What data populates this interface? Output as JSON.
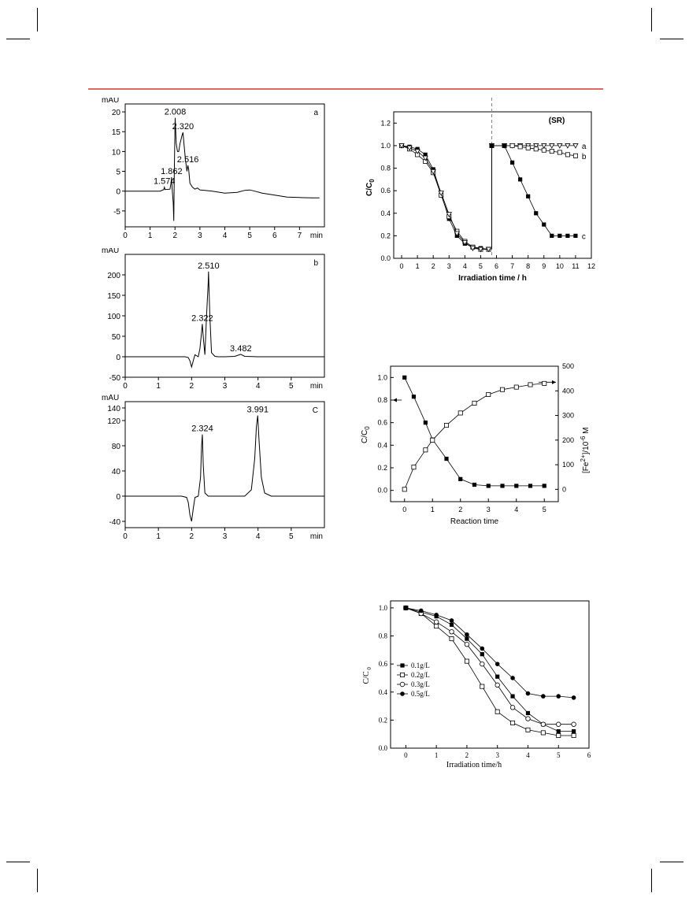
{
  "page": {
    "rule_color": "#e0666a"
  },
  "chart_data": [
    {
      "id": "hplc_a",
      "type": "line",
      "panel_label": "a",
      "ylabel": "mAU",
      "xlabel": "min",
      "xlim": [
        0,
        8
      ],
      "ylim": [
        -9,
        22
      ],
      "xticks": [
        0,
        1,
        2,
        3,
        4,
        5,
        6,
        7
      ],
      "yticks": [
        -5,
        0,
        5,
        10,
        15,
        20
      ],
      "series": [
        {
          "x": [
            0,
            1.0,
            1.4,
            1.55,
            1.574,
            1.6,
            1.8,
            1.85,
            1.862,
            1.88,
            1.93,
            1.95,
            1.97,
            2.0,
            2.008,
            2.05,
            2.1,
            2.15,
            2.2,
            2.28,
            2.32,
            2.36,
            2.42,
            2.48,
            2.516,
            2.55,
            2.6,
            2.7,
            2.8,
            2.9,
            3.0,
            3.2,
            3.5,
            4.0,
            4.5,
            4.8,
            5.0,
            5.2,
            5.5,
            6.0,
            6.5,
            7.0,
            7.5,
            7.8
          ],
          "y": [
            0,
            0,
            0,
            0.4,
            1.0,
            0.4,
            0.5,
            2.5,
            3.5,
            1.0,
            -3.0,
            -7.5,
            4.0,
            17.0,
            18.5,
            12.0,
            10.0,
            10.0,
            12.0,
            14.0,
            14.8,
            12.0,
            8.0,
            5.0,
            6.5,
            5.5,
            2.0,
            1.0,
            0.5,
            0.8,
            0.3,
            0.2,
            0.0,
            -0.5,
            -0.3,
            0.2,
            0.3,
            0.0,
            -0.5,
            -1.0,
            -1.5,
            -1.6,
            -1.7,
            -1.7
          ]
        }
      ],
      "peak_labels": [
        {
          "x": 1.574,
          "y": 1.0,
          "text": "1.574"
        },
        {
          "x": 1.862,
          "y": 3.5,
          "text": "1.862"
        },
        {
          "x": 2.008,
          "y": 18.5,
          "text": "2.008"
        },
        {
          "x": 2.32,
          "y": 14.8,
          "text": "2.320"
        },
        {
          "x": 2.516,
          "y": 6.5,
          "text": "2.516"
        }
      ]
    },
    {
      "id": "hplc_b",
      "type": "line",
      "panel_label": "b",
      "ylabel": "mAU",
      "xlabel": "min",
      "xlim": [
        0,
        6
      ],
      "ylim": [
        -50,
        250
      ],
      "xticks": [
        0,
        1,
        2,
        3,
        4,
        5
      ],
      "yticks": [
        -50,
        0,
        50,
        100,
        150,
        200
      ],
      "series": [
        {
          "x": [
            0,
            1.0,
            1.5,
            1.8,
            1.9,
            1.95,
            2.0,
            2.05,
            2.1,
            2.2,
            2.25,
            2.3,
            2.322,
            2.36,
            2.4,
            2.45,
            2.5,
            2.51,
            2.55,
            2.6,
            2.7,
            2.8,
            3.0,
            3.3,
            3.48,
            3.6,
            4.0,
            4.5,
            5.0,
            5.5,
            6.0
          ],
          "y": [
            0,
            0,
            0,
            0,
            -2,
            -10,
            -25,
            -10,
            5,
            0,
            20,
            60,
            80,
            40,
            5,
            100,
            180,
            208,
            100,
            10,
            1,
            0,
            0,
            1,
            6,
            1,
            0,
            0,
            0,
            0,
            0
          ]
        }
      ],
      "peak_labels": [
        {
          "x": 2.322,
          "y": 80,
          "text": "2.322"
        },
        {
          "x": 2.51,
          "y": 208,
          "text": "2.510"
        },
        {
          "x": 3.482,
          "y": 6,
          "text": "3.482"
        }
      ]
    },
    {
      "id": "hplc_c",
      "type": "line",
      "panel_label": "C",
      "ylabel": "mAU",
      "xlabel": "min",
      "xlim": [
        0,
        6
      ],
      "ylim": [
        -50,
        150
      ],
      "xticks": [
        0,
        1,
        2,
        3,
        4,
        5
      ],
      "yticks": [
        -40,
        0,
        40,
        80,
        120,
        140
      ],
      "series": [
        {
          "x": [
            0,
            1.0,
            1.7,
            1.85,
            1.9,
            1.95,
            2.0,
            2.05,
            2.1,
            2.2,
            2.27,
            2.3,
            2.324,
            2.35,
            2.4,
            2.5,
            3.0,
            3.6,
            3.8,
            3.9,
            3.95,
            3.991,
            4.03,
            4.1,
            4.2,
            4.4,
            5.0,
            6.0
          ],
          "y": [
            0,
            0,
            0,
            -2,
            -10,
            -30,
            -40,
            -20,
            -2,
            0,
            30,
            80,
            98,
            50,
            5,
            0,
            0,
            0,
            10,
            60,
            110,
            128,
            90,
            30,
            5,
            0,
            0,
            0
          ]
        }
      ],
      "peak_labels": [
        {
          "x": 2.324,
          "y": 98,
          "text": "2.324"
        },
        {
          "x": 3.991,
          "y": 128,
          "text": "3.991"
        }
      ]
    },
    {
      "id": "sr_plot",
      "type": "line",
      "xlabel": "Irradiation time / h",
      "ylabel": "C/C",
      "ylabel_sub": "0",
      "xlim": [
        -0.5,
        12
      ],
      "ylim": [
        0,
        1.3
      ],
      "xticks": [
        0,
        1,
        2,
        3,
        4,
        5,
        6,
        7,
        8,
        9,
        10,
        11,
        12
      ],
      "yticks": [
        0.0,
        0.2,
        0.4,
        0.6,
        0.8,
        1.0,
        1.2
      ],
      "annotation": "(SR)",
      "divider_x": 5.7,
      "series": [
        {
          "name": "",
          "marker": "filled-square",
          "x": [
            0,
            0.5,
            1.0,
            1.5,
            2.0,
            2.5,
            3.0,
            3.5,
            4.0,
            4.5,
            5.0,
            5.5
          ],
          "y": [
            1.0,
            0.99,
            0.97,
            0.92,
            0.79,
            0.57,
            0.35,
            0.2,
            0.13,
            0.1,
            0.09,
            0.08
          ]
        },
        {
          "name": "",
          "marker": "open-square",
          "x": [
            0,
            0.5,
            1.0,
            1.5,
            2.0,
            2.5,
            3.0,
            3.5,
            4.0,
            4.5,
            5.0,
            5.5
          ],
          "y": [
            1.0,
            0.97,
            0.92,
            0.86,
            0.76,
            0.56,
            0.37,
            0.24,
            0.15,
            0.1,
            0.08,
            0.08
          ]
        },
        {
          "name": "",
          "marker": "open-triangle",
          "x": [
            0,
            0.5,
            1.0,
            1.5,
            2.0,
            2.5,
            3.0,
            3.5,
            4.0,
            4.5,
            5.0,
            5.5
          ],
          "y": [
            1.0,
            0.98,
            0.95,
            0.89,
            0.77,
            0.58,
            0.39,
            0.22,
            0.14,
            0.09,
            0.08,
            0.08
          ]
        },
        {
          "name": "a",
          "marker": "open-triangle",
          "x": [
            5.7,
            6.5,
            7.0,
            7.5,
            8.0,
            8.5,
            9.0,
            9.5,
            10.0,
            10.5,
            11.0
          ],
          "y": [
            1.0,
            1.0,
            1.0,
            1.0,
            1.0,
            1.0,
            1.0,
            1.0,
            1.0,
            1.0,
            1.0
          ]
        },
        {
          "name": "b",
          "marker": "open-square",
          "x": [
            5.7,
            6.5,
            7.0,
            7.5,
            8.0,
            8.5,
            9.0,
            9.5,
            10.0,
            10.5,
            11.0
          ],
          "y": [
            1.0,
            1.0,
            1.0,
            0.99,
            0.98,
            0.97,
            0.96,
            0.95,
            0.94,
            0.92,
            0.91
          ]
        },
        {
          "name": "c",
          "marker": "filled-square",
          "x": [
            5.7,
            6.5,
            7.0,
            7.5,
            8.0,
            8.5,
            9.0,
            9.5,
            10.0,
            10.5,
            11.0
          ],
          "y": [
            1.0,
            1.0,
            0.85,
            0.7,
            0.55,
            0.4,
            0.3,
            0.2,
            0.2,
            0.2,
            0.2
          ]
        }
      ]
    },
    {
      "id": "fe_plot",
      "type": "line",
      "xlabel": "Reaction time",
      "ylabel": "C/C",
      "ylabel_sub": "0",
      "y2label": "[Fe",
      "y2label_sup": "2+",
      "y2label_tail": "]/10",
      "y2label_sup2": "-6",
      "y2label_end": " M",
      "xlim": [
        -0.5,
        5.5
      ],
      "ylim": [
        -0.1,
        1.1
      ],
      "y2lim": [
        -50,
        500
      ],
      "xticks": [
        0,
        1,
        2,
        3,
        4,
        5
      ],
      "yticks": [
        0.0,
        0.2,
        0.4,
        0.6,
        0.8,
        1.0
      ],
      "y2ticks": [
        0,
        100,
        200,
        300,
        400,
        500
      ],
      "series": [
        {
          "name": "",
          "axis": "left",
          "marker": "filled-square",
          "x": [
            0,
            0.33,
            0.75,
            1.0,
            1.5,
            2.0,
            2.5,
            3.0,
            3.5,
            4.0,
            4.5,
            5.0
          ],
          "y": [
            1.0,
            0.83,
            0.6,
            0.45,
            0.28,
            0.1,
            0.05,
            0.04,
            0.04,
            0.04,
            0.04,
            0.04
          ]
        },
        {
          "name": "",
          "axis": "right",
          "marker": "open-square",
          "x": [
            0,
            0.33,
            0.75,
            1.0,
            1.5,
            2.0,
            2.5,
            3.0,
            3.5,
            4.0,
            4.5,
            5.0
          ],
          "y": [
            0,
            90,
            160,
            200,
            260,
            310,
            350,
            385,
            405,
            415,
            425,
            430
          ]
        }
      ]
    },
    {
      "id": "dose_plot",
      "type": "line",
      "xlabel": "Irradiation time/h",
      "ylabel": "C/C",
      "ylabel_sub": "0",
      "xlim": [
        -0.5,
        6
      ],
      "ylim": [
        0,
        1.05
      ],
      "xticks": [
        0,
        1,
        2,
        3,
        4,
        5,
        6
      ],
      "yticks": [
        0.0,
        0.2,
        0.4,
        0.6,
        0.8,
        1.0
      ],
      "series": [
        {
          "name": "0.1g/L",
          "marker": "filled-square",
          "x": [
            0,
            0.5,
            1.0,
            1.5,
            2.0,
            2.5,
            3.0,
            3.5,
            4.0,
            4.5,
            5.0,
            5.5
          ],
          "y": [
            1.0,
            0.97,
            0.94,
            0.88,
            0.78,
            0.67,
            0.51,
            0.37,
            0.25,
            0.17,
            0.12,
            0.12
          ]
        },
        {
          "name": "0.2g/L",
          "marker": "open-square",
          "x": [
            0,
            0.5,
            1.0,
            1.5,
            2.0,
            2.5,
            3.0,
            3.5,
            4.0,
            4.5,
            5.0,
            5.5
          ],
          "y": [
            1.0,
            0.96,
            0.87,
            0.78,
            0.62,
            0.44,
            0.26,
            0.18,
            0.13,
            0.11,
            0.09,
            0.09
          ]
        },
        {
          "name": "0.3g/L",
          "marker": "open-circle",
          "x": [
            0,
            0.5,
            1.0,
            1.5,
            2.0,
            2.5,
            3.0,
            3.5,
            4.0,
            4.5,
            5.0,
            5.5
          ],
          "y": [
            1.0,
            0.96,
            0.9,
            0.83,
            0.74,
            0.6,
            0.45,
            0.29,
            0.21,
            0.17,
            0.17,
            0.17
          ]
        },
        {
          "name": "0.5g/L",
          "marker": "filled-circle",
          "x": [
            0,
            0.5,
            1.0,
            1.5,
            2.0,
            2.5,
            3.0,
            3.5,
            4.0,
            4.5,
            5.0,
            5.5
          ],
          "y": [
            1.0,
            0.98,
            0.95,
            0.91,
            0.81,
            0.71,
            0.6,
            0.5,
            0.39,
            0.37,
            0.37,
            0.36
          ]
        }
      ]
    }
  ]
}
